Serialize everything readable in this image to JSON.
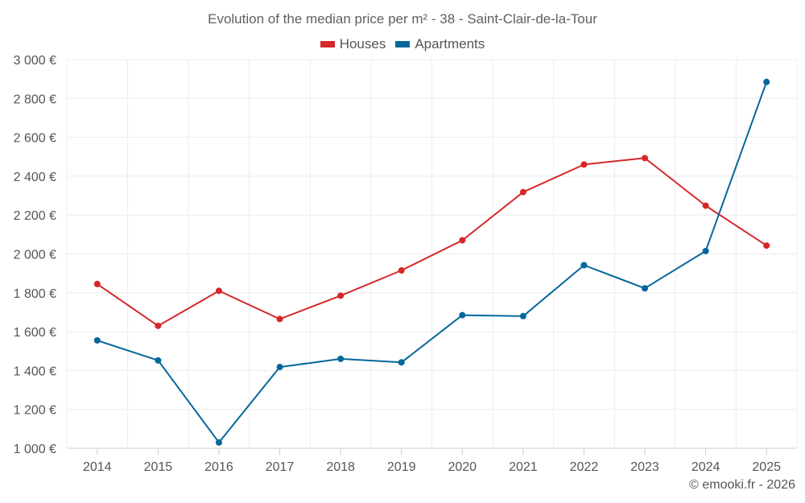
{
  "chart_data": {
    "type": "line",
    "title": "Evolution of the median price per m² - 38 - Saint-Clair-de-la-Tour",
    "categories": [
      "2014",
      "2015",
      "2016",
      "2017",
      "2018",
      "2019",
      "2020",
      "2021",
      "2022",
      "2023",
      "2024",
      "2025"
    ],
    "ylim": [
      1000,
      3000
    ],
    "yticks": [
      "1 000 €",
      "1 200 €",
      "1 400 €",
      "1 600 €",
      "1 800 €",
      "2 000 €",
      "2 200 €",
      "2 400 €",
      "2 600 €",
      "2 800 €",
      "3 000 €"
    ],
    "ytick_values": [
      1000,
      1200,
      1400,
      1600,
      1800,
      2000,
      2200,
      2400,
      2600,
      2800,
      3000
    ],
    "xlabel": "",
    "ylabel": "",
    "grid": true,
    "legend_position": "top-center",
    "series": [
      {
        "name": "Houses",
        "color": "#d62728",
        "values": [
          1845,
          1630,
          1810,
          1665,
          1785,
          1915,
          2070,
          2318,
          2460,
          2493,
          2248,
          2043
        ]
      },
      {
        "name": "Apartments",
        "color": "#04679c",
        "values": [
          1555,
          1452,
          1030,
          1418,
          1460,
          1442,
          1685,
          1680,
          1942,
          1823,
          2015,
          2885
        ]
      }
    ]
  },
  "credit": "© emooki.fr - 2026"
}
